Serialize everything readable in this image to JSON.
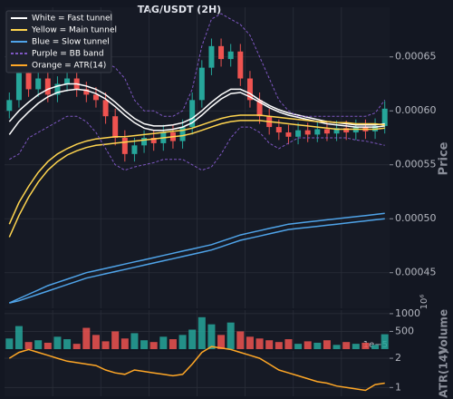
{
  "chart_data": {
    "type": "candlestick",
    "title": "TAG/USDT (2H)",
    "ylabel": "Price",
    "ylim": [
      0.000417,
      0.000696
    ],
    "yticks": [
      0.00045,
      {
        "value": 0.0005,
        "label": "0.00050"
      },
      0.00055,
      {
        "value": 0.0006,
        "label": "0.00060"
      },
      0.00065
    ],
    "grid": true,
    "up_color": "#26a69a",
    "down_color": "#ef5350",
    "open": [
      0.0006,
      0.00061,
      0.000635,
      0.00062,
      0.00063,
      0.000615,
      0.000625,
      0.00063,
      0.00062,
      0.000615,
      0.00061,
      0.000595,
      0.000575,
      0.00056,
      0.000568,
      0.000575,
      0.00057,
      0.00058,
      0.000572,
      0.000585,
      0.00061,
      0.00064,
      0.00066,
      0.000648,
      0.000655,
      0.00063,
      0.00061,
      0.000595,
      0.000585,
      0.00058,
      0.000576,
      0.000582,
      0.000578,
      0.000583,
      0.000579,
      0.000584,
      0.00058,
      0.000585,
      0.000581,
      0.000586
    ],
    "high": [
      0.000617,
      0.000642,
      0.000642,
      0.000637,
      0.000637,
      0.000632,
      0.000637,
      0.000637,
      0.000627,
      0.000622,
      0.000617,
      0.000602,
      0.000582,
      0.000575,
      0.000582,
      0.000582,
      0.000587,
      0.000587,
      0.000592,
      0.000617,
      0.000647,
      0.000667,
      0.000667,
      0.000662,
      0.000662,
      0.000637,
      0.000617,
      0.000602,
      0.000592,
      0.000587,
      0.000589,
      0.000589,
      0.00059,
      0.00059,
      0.000591,
      0.000591,
      0.000592,
      0.000592,
      0.000593,
      0.000609
    ],
    "low": [
      0.000593,
      0.000603,
      0.000613,
      0.000613,
      0.000608,
      0.000608,
      0.000618,
      0.000613,
      0.000608,
      0.000603,
      0.000588,
      0.000568,
      0.000553,
      0.000553,
      0.000561,
      0.000563,
      0.000563,
      0.000565,
      0.000565,
      0.000578,
      0.000603,
      0.000633,
      0.000641,
      0.000641,
      0.000623,
      0.000603,
      0.000588,
      0.000578,
      0.000573,
      0.000569,
      0.000569,
      0.000571,
      0.000571,
      0.000572,
      0.000572,
      0.000573,
      0.000573,
      0.000574,
      0.000574,
      0.000579
    ],
    "close": [
      0.00061,
      0.000635,
      0.00062,
      0.00063,
      0.000615,
      0.000625,
      0.00063,
      0.00062,
      0.000615,
      0.00061,
      0.000595,
      0.000575,
      0.00056,
      0.000568,
      0.000575,
      0.00057,
      0.00058,
      0.000572,
      0.000585,
      0.00061,
      0.00064,
      0.00066,
      0.000648,
      0.000655,
      0.00063,
      0.00061,
      0.000595,
      0.000585,
      0.00058,
      0.000576,
      0.000582,
      0.000578,
      0.000583,
      0.000579,
      0.000584,
      0.00058,
      0.000585,
      0.000581,
      0.000586,
      0.000602
    ],
    "series": [
      {
        "name": "White = Fast tunnel",
        "color": "#ffffff",
        "panel": "price",
        "lines": [
          [
            0.00059,
            0.0006,
            0.000608,
            0.000615,
            0.00062,
            0.000623,
            0.000625,
            0.000625,
            0.000623,
            0.00062,
            0.000615,
            0.000608,
            0.0006,
            0.000593,
            0.000588,
            0.000586,
            0.000586,
            0.000587,
            0.000589,
            0.000593,
            0.0006,
            0.000608,
            0.000615,
            0.00062,
            0.00062,
            0.000616,
            0.00061,
            0.000605,
            0.000601,
            0.000598,
            0.000596,
            0.000594,
            0.000592,
            0.00059,
            0.000589,
            0.000588,
            0.000587,
            0.000587,
            0.000587,
            0.000588
          ],
          [
            0.000578,
            0.00059,
            0.000599,
            0.000607,
            0.000613,
            0.000617,
            0.000619,
            0.00062,
            0.000619,
            0.000616,
            0.000611,
            0.000604,
            0.000596,
            0.000589,
            0.000584,
            0.000582,
            0.000582,
            0.000583,
            0.000585,
            0.000589,
            0.000596,
            0.000604,
            0.000611,
            0.000616,
            0.000617,
            0.000613,
            0.000608,
            0.000603,
            0.000599,
            0.000596,
            0.000594,
            0.000592,
            0.00059,
            0.000588,
            0.000587,
            0.000586,
            0.000585,
            0.000585,
            0.000585,
            0.000586
          ]
        ]
      },
      {
        "name": "Yellow = Main tunnel",
        "color": "#ffd54f",
        "panel": "price",
        "lines": [
          [
            0.000495,
            0.000515,
            0.00053,
            0.000543,
            0.000553,
            0.00056,
            0.000565,
            0.000569,
            0.000572,
            0.000574,
            0.000575,
            0.000576,
            0.000576,
            0.000577,
            0.000578,
            0.000579,
            0.00058,
            0.000581,
            0.000582,
            0.000584,
            0.000587,
            0.00059,
            0.000593,
            0.000595,
            0.000596,
            0.000596,
            0.000596,
            0.000595,
            0.000594,
            0.000593,
            0.000592,
            0.000591,
            0.00059,
            0.00059,
            0.000589,
            0.000589,
            0.000588,
            0.000588,
            0.000588,
            0.000587
          ],
          [
            0.000483,
            0.000503,
            0.00052,
            0.000534,
            0.000545,
            0.000553,
            0.000559,
            0.000563,
            0.000566,
            0.000568,
            0.000569,
            0.00057,
            0.000571,
            0.000572,
            0.000573,
            0.000574,
            0.000575,
            0.000576,
            0.000577,
            0.000579,
            0.000582,
            0.000585,
            0.000588,
            0.00059,
            0.000591,
            0.000591,
            0.000591,
            0.00059,
            0.000589,
            0.000588,
            0.000587,
            0.000586,
            0.000585,
            0.000584,
            0.000583,
            0.000583,
            0.000583,
            0.000583,
            0.000583,
            0.000584
          ]
        ]
      },
      {
        "name": "Blue = Slow tunnel",
        "color": "#4fa3e8",
        "panel": "price",
        "lines": [
          [
            0.000422,
            0.000426,
            0.00043,
            0.000434,
            0.000438,
            0.000441,
            0.000444,
            0.000447,
            0.00045,
            0.000452,
            0.000454,
            0.000456,
            0.000458,
            0.00046,
            0.000462,
            0.000464,
            0.000466,
            0.000468,
            0.00047,
            0.000472,
            0.000474,
            0.000476,
            0.000479,
            0.000482,
            0.000485,
            0.000487,
            0.000489,
            0.000491,
            0.000493,
            0.000495,
            0.000496,
            0.000497,
            0.000498,
            0.000499,
            0.0005,
            0.000501,
            0.000502,
            0.000503,
            0.000504,
            0.000505
          ],
          [
            0.000422,
            0.000424,
            0.000427,
            0.00043,
            0.000433,
            0.000436,
            0.000439,
            0.000442,
            0.000445,
            0.000447,
            0.000449,
            0.000451,
            0.000453,
            0.000455,
            0.000457,
            0.000459,
            0.000461,
            0.000463,
            0.000465,
            0.000467,
            0.000469,
            0.000471,
            0.000474,
            0.000477,
            0.00048,
            0.000482,
            0.000484,
            0.000486,
            0.000488,
            0.00049,
            0.000491,
            0.000492,
            0.000493,
            0.000494,
            0.000495,
            0.000496,
            0.000497,
            0.000498,
            0.000499,
            0.0005
          ]
        ]
      },
      {
        "name": "Purple = BB band",
        "color": "#7e57c2",
        "panel": "price",
        "dash": true,
        "lines": [
          [
            0.00068,
            0.000685,
            0.00067,
            0.000665,
            0.00066,
            0.00065,
            0.00066,
            0.000665,
            0.00066,
            0.00065,
            0.000645,
            0.00064,
            0.00063,
            0.00061,
            0.0006,
            0.0006,
            0.000595,
            0.000595,
            0.0006,
            0.00062,
            0.00066,
            0.000685,
            0.00069,
            0.000685,
            0.00068,
            0.00067,
            0.00065,
            0.00063,
            0.00061,
            0.0006,
            0.000595,
            0.000595,
            0.000595,
            0.000595,
            0.000595,
            0.000595,
            0.000595,
            0.000595,
            0.000598,
            0.00061
          ],
          [
            0.000555,
            0.00056,
            0.000575,
            0.00058,
            0.000585,
            0.00059,
            0.000595,
            0.000595,
            0.00059,
            0.00058,
            0.000565,
            0.00055,
            0.000545,
            0.000548,
            0.00055,
            0.000552,
            0.000555,
            0.000555,
            0.000555,
            0.00055,
            0.000545,
            0.000548,
            0.00056,
            0.000575,
            0.000585,
            0.000585,
            0.00058,
            0.00057,
            0.000565,
            0.00057,
            0.000575,
            0.000575,
            0.000575,
            0.000575,
            0.000575,
            0.000575,
            0.000573,
            0.000572,
            0.00057,
            0.000568
          ]
        ]
      },
      {
        "name": "Orange = ATR(14)",
        "color": "#ffa726",
        "panel": "atr",
        "lines": [
          [
            2.0,
            2.2,
            2.3,
            2.2,
            2.1,
            2.0,
            1.9,
            1.85,
            1.8,
            1.75,
            1.6,
            1.5,
            1.45,
            1.6,
            1.55,
            1.5,
            1.45,
            1.4,
            1.45,
            1.8,
            2.2,
            2.4,
            2.35,
            2.3,
            2.2,
            2.1,
            2.0,
            1.8,
            1.6,
            1.5,
            1.4,
            1.3,
            1.2,
            1.15,
            1.05,
            1.0,
            0.95,
            0.9,
            1.1,
            1.15
          ]
        ]
      }
    ],
    "volume": {
      "ylabel": "Volume",
      "offset_label": "10⁶",
      "ylim": [
        0,
        1100
      ],
      "yticks": [
        500,
        1000
      ],
      "values": [
        300,
        650,
        200,
        250,
        180,
        350,
        280,
        150,
        600,
        400,
        220,
        500,
        300,
        450,
        250,
        200,
        350,
        280,
        400,
        550,
        900,
        700,
        400,
        750,
        500,
        350,
        300,
        250,
        200,
        280,
        150,
        220,
        180,
        250,
        120,
        200,
        150,
        180,
        120,
        420
      ]
    },
    "atr": {
      "ylabel": "ATR(14)",
      "offset_label": "1e−5",
      "ylim": [
        0.7,
        2.25
      ],
      "yticks": [
        1,
        2
      ]
    }
  }
}
